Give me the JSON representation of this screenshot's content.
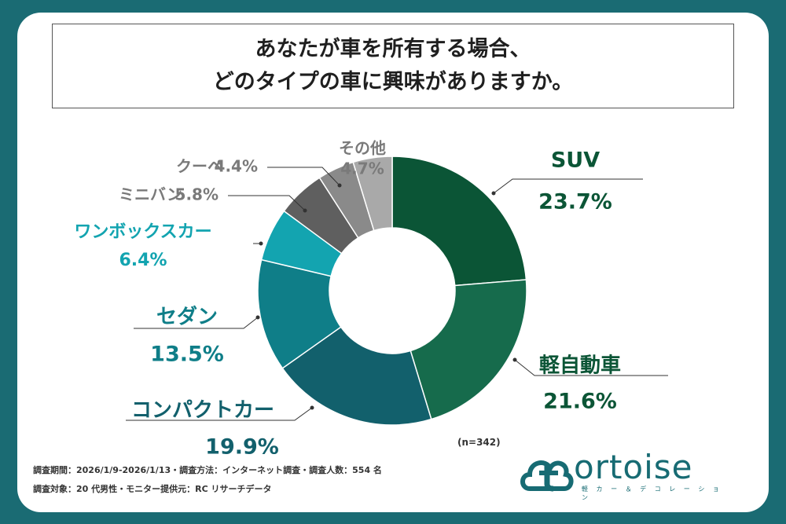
{
  "title": {
    "line1": "あなたが車を所有する場合、",
    "line2": "どのタイプの車に興味がありますか。"
  },
  "chart_data": {
    "type": "pie",
    "donut": true,
    "unit": "%",
    "slices": [
      {
        "name": "SUV",
        "value": 23.7,
        "label": "23.7%",
        "color": "#0b5536"
      },
      {
        "name": "軽自動車",
        "value": 21.6,
        "label": "21.6%",
        "color": "#166b4c"
      },
      {
        "name": "コンパクトカー",
        "value": 19.9,
        "label": "19.9%",
        "color": "#12606c"
      },
      {
        "name": "セダン",
        "value": 13.5,
        "label": "13.5%",
        "color": "#0f7e88"
      },
      {
        "name": "ワンボックスカー",
        "value": 6.4,
        "label": "6.4%",
        "color": "#13a4b0"
      },
      {
        "name": "ミニバン",
        "value": 5.8,
        "label": "5.8%",
        "color": "#5f5f5f"
      },
      {
        "name": "クーペ",
        "value": 4.4,
        "label": "4.4%",
        "color": "#8a8a8a"
      },
      {
        "name": "その他",
        "value": 4.7,
        "label": "4.7%",
        "color": "#a9a9a9"
      }
    ]
  },
  "sample_note": "(n=342)",
  "footer": {
    "line1": "調査期間：2026/1/9-2026/1/13・調査方法：インターネット調査・調査人数：554 名",
    "line2": "調査対象：20 代男性・モニター提供元：RC リサーチデータ"
  },
  "logo": {
    "text": "ortoise",
    "subtitle": "軽 カ ー ＆ デ コ レ ー シ ョ ン"
  },
  "colors": {
    "background": "#1a6b73",
    "label_green": "#0b5536",
    "label_teal": "#0f7e88",
    "label_cyan": "#13a4b0",
    "label_gray": "#7a7a7a"
  }
}
